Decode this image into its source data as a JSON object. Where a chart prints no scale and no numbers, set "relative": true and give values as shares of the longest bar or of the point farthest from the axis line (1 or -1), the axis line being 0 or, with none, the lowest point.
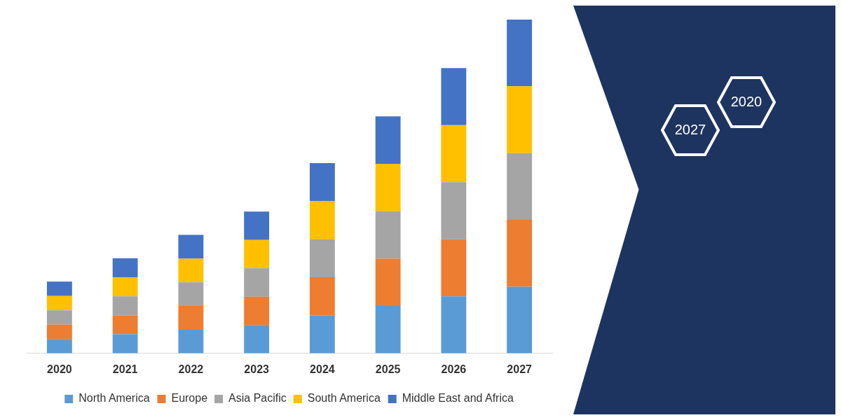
{
  "chart_data": {
    "type": "bar",
    "stacked": true,
    "relative": true,
    "legend": "bottom",
    "grid": false,
    "categories": [
      "2020",
      "2021",
      "2022",
      "2023",
      "2024",
      "2025",
      "2026",
      "2027"
    ],
    "series": [
      {
        "name": "North America",
        "color": "#5b9bd5",
        "values": [
          0.043,
          0.057,
          0.071,
          0.085,
          0.114,
          0.142,
          0.171,
          0.2
        ]
      },
      {
        "name": "Europe",
        "color": "#ed7d31",
        "values": [
          0.043,
          0.057,
          0.071,
          0.085,
          0.114,
          0.142,
          0.171,
          0.2
        ]
      },
      {
        "name": "Asia Pacific",
        "color": "#a5a5a5",
        "values": [
          0.043,
          0.057,
          0.071,
          0.085,
          0.114,
          0.142,
          0.171,
          0.2
        ]
      },
      {
        "name": "South America",
        "color": "#ffc000",
        "values": [
          0.043,
          0.057,
          0.071,
          0.085,
          0.114,
          0.142,
          0.171,
          0.2
        ]
      },
      {
        "name": "Middle East and Africa",
        "color": "#4472c4",
        "values": [
          0.043,
          0.057,
          0.071,
          0.085,
          0.114,
          0.142,
          0.171,
          0.2
        ]
      }
    ],
    "annotations": [
      "2020",
      "2027"
    ]
  }
}
